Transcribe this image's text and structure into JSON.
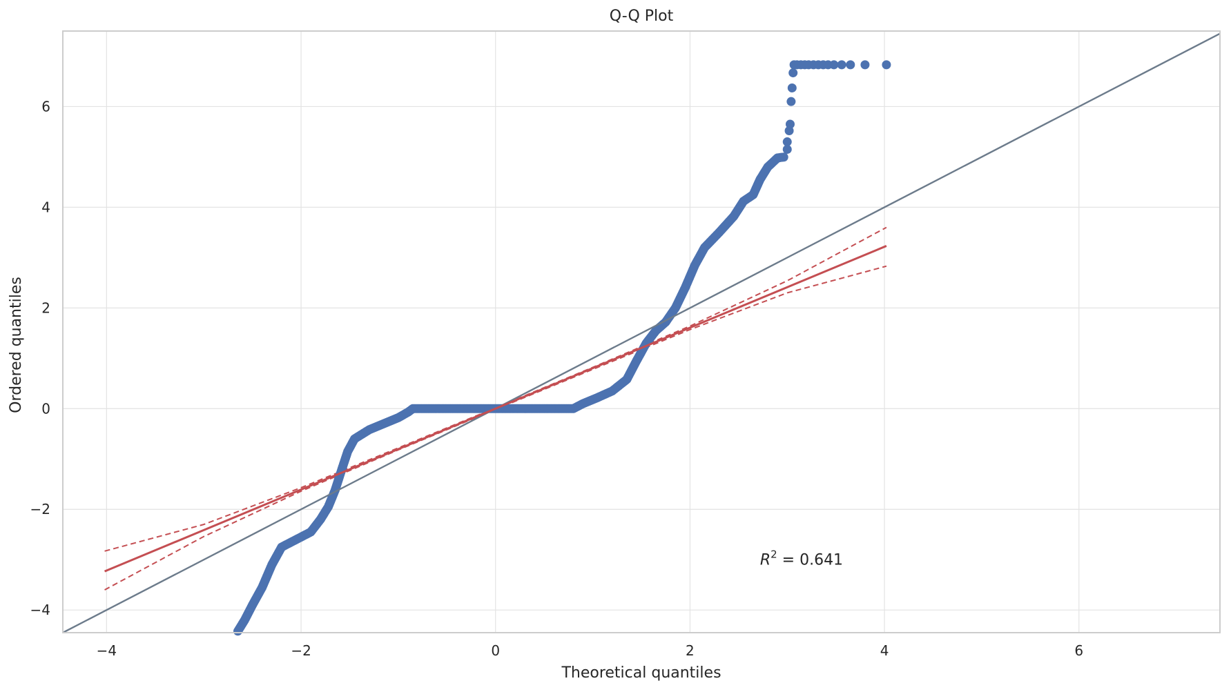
{
  "chart_data": {
    "type": "scatter",
    "title": "Q-Q Plot",
    "xlabel": "Theoretical quantiles",
    "ylabel": "Ordered quantiles",
    "xlim": [
      -4.45,
      7.45
    ],
    "ylim": [
      -4.45,
      7.5
    ],
    "grid": true,
    "x_ticks": [
      -4,
      -2,
      0,
      2,
      4,
      6
    ],
    "y_ticks": [
      -4,
      -2,
      0,
      2,
      4,
      6
    ],
    "x_tick_labels": [
      "−4",
      "−2",
      "0",
      "2",
      "4",
      "6"
    ],
    "y_tick_labels": [
      "−4",
      "−2",
      "0",
      "2",
      "4",
      "6"
    ],
    "annotation": {
      "r2_prefix": "R",
      "r2_exponent": "2",
      "r2_text": " = 0.641",
      "x": 2.72,
      "y": -3.1
    },
    "reference_line": {
      "name": "45-degree line",
      "color": "#6c7b8b",
      "points": [
        [
          -4.45,
          -4.45
        ],
        [
          7.45,
          7.45
        ]
      ]
    },
    "fit_line": {
      "name": "regression fit",
      "color": "#c44e52",
      "slope": 0.804,
      "intercept": 0.0,
      "x_range": [
        -4.02,
        4.02
      ]
    },
    "confidence_band": {
      "color": "#c44e52",
      "upper": [
        [
          -4.02,
          -2.83
        ],
        [
          -3.0,
          -2.3
        ],
        [
          -2.0,
          -1.57
        ],
        [
          -1.0,
          -0.78
        ],
        [
          0.0,
          0.015
        ],
        [
          1.0,
          0.82
        ],
        [
          2.0,
          1.64
        ],
        [
          3.0,
          2.54
        ],
        [
          4.02,
          3.6
        ]
      ],
      "lower": [
        [
          -4.02,
          -3.6
        ],
        [
          -3.0,
          -2.54
        ],
        [
          -2.0,
          -1.64
        ],
        [
          -1.0,
          -0.82
        ],
        [
          0.0,
          -0.015
        ],
        [
          1.0,
          0.78
        ],
        [
          2.0,
          1.57
        ],
        [
          3.0,
          2.3
        ],
        [
          4.02,
          2.83
        ]
      ]
    },
    "series": [
      {
        "color": "#4c72b0",
        "curve_points": [
          [
            -2.65,
            -4.42
          ],
          [
            -2.58,
            -4.2
          ],
          [
            -2.5,
            -3.9
          ],
          [
            -2.4,
            -3.55
          ],
          [
            -2.3,
            -3.1
          ],
          [
            -2.2,
            -2.75
          ],
          [
            -2.05,
            -2.6
          ],
          [
            -1.9,
            -2.45
          ],
          [
            -1.8,
            -2.2
          ],
          [
            -1.72,
            -1.95
          ],
          [
            -1.65,
            -1.62
          ],
          [
            -1.58,
            -1.2
          ],
          [
            -1.52,
            -0.85
          ],
          [
            -1.45,
            -0.6
          ],
          [
            -1.3,
            -0.42
          ],
          [
            -1.15,
            -0.3
          ],
          [
            -1.0,
            -0.18
          ],
          [
            -0.9,
            -0.07
          ],
          [
            -0.85,
            0.0
          ],
          [
            0.0,
            0.0
          ],
          [
            0.8,
            0.0
          ],
          [
            0.9,
            0.1
          ],
          [
            1.05,
            0.22
          ],
          [
            1.2,
            0.35
          ],
          [
            1.35,
            0.58
          ],
          [
            1.45,
            0.95
          ],
          [
            1.55,
            1.3
          ],
          [
            1.65,
            1.55
          ],
          [
            1.75,
            1.72
          ],
          [
            1.85,
            2.0
          ],
          [
            1.95,
            2.4
          ],
          [
            2.05,
            2.85
          ],
          [
            2.15,
            3.2
          ],
          [
            2.3,
            3.5
          ],
          [
            2.45,
            3.82
          ],
          [
            2.55,
            4.12
          ],
          [
            2.65,
            4.25
          ],
          [
            2.72,
            4.55
          ],
          [
            2.8,
            4.8
          ],
          [
            2.9,
            4.98
          ],
          [
            2.98,
            5.0
          ]
        ],
        "outliers": [
          [
            3.0,
            5.15
          ],
          [
            3.0,
            5.3
          ],
          [
            3.02,
            5.52
          ],
          [
            3.03,
            5.65
          ],
          [
            3.04,
            6.1
          ],
          [
            3.05,
            6.37
          ],
          [
            3.06,
            6.67
          ],
          [
            3.07,
            6.83
          ],
          [
            3.1,
            6.83
          ],
          [
            3.14,
            6.83
          ],
          [
            3.18,
            6.83
          ],
          [
            3.22,
            6.83
          ],
          [
            3.27,
            6.83
          ],
          [
            3.32,
            6.83
          ],
          [
            3.37,
            6.83
          ],
          [
            3.42,
            6.83
          ],
          [
            3.48,
            6.83
          ],
          [
            3.56,
            6.83
          ],
          [
            3.65,
            6.83
          ],
          [
            3.8,
            6.83
          ],
          [
            4.02,
            6.83
          ]
        ]
      }
    ]
  }
}
